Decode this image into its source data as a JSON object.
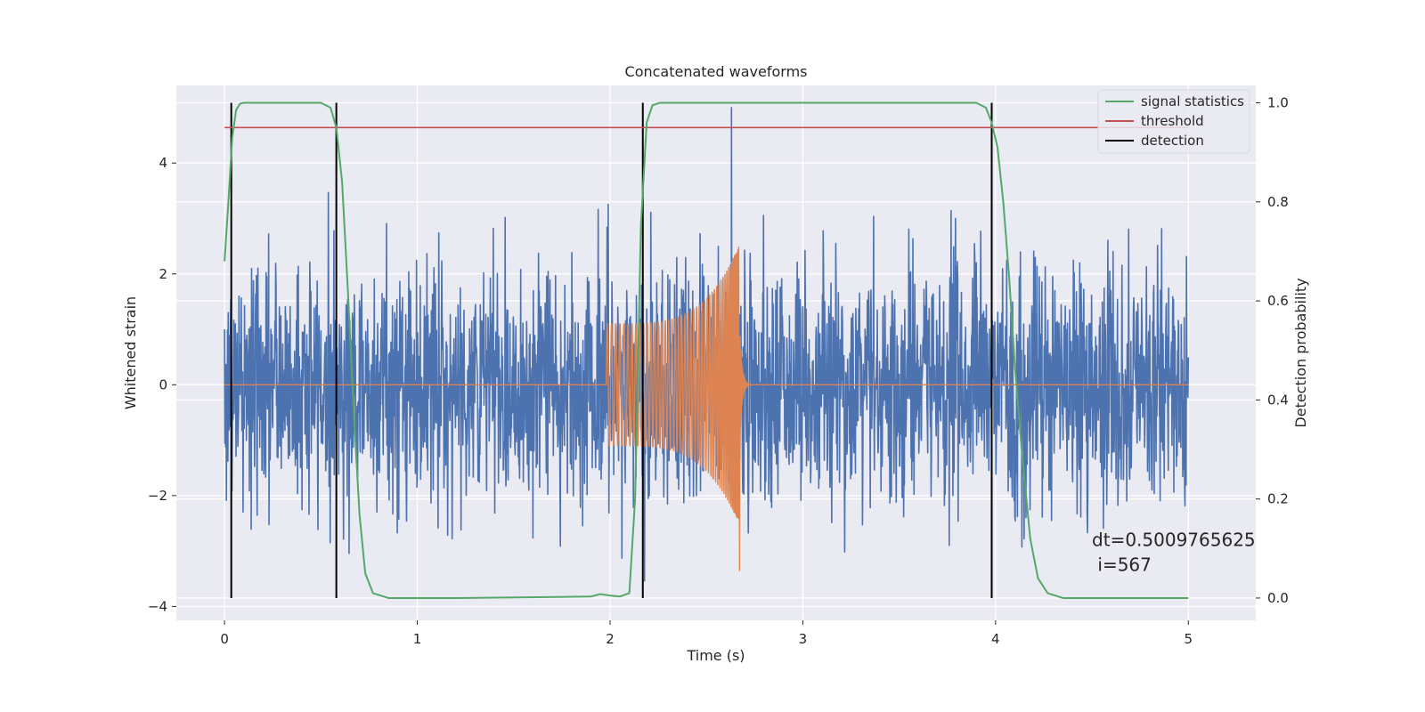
{
  "chart_data": {
    "type": "line",
    "title": "Concatenated waveforms",
    "xlabel": "Time (s)",
    "ylabel": "Whitened strain",
    "y2label": "Detection probability",
    "xlim": [
      -0.25,
      5.35
    ],
    "ylim": [
      -4.25,
      5.4
    ],
    "y2lim": [
      -0.045,
      1.035
    ],
    "x_ticks": [
      0,
      1,
      2,
      3,
      4,
      5
    ],
    "x_tick_labels": [
      "0",
      "1",
      "2",
      "3",
      "4",
      "5"
    ],
    "y_ticks": [
      -4,
      -2,
      0,
      2,
      4
    ],
    "y_tick_labels": [
      "−4",
      "−2",
      "0",
      "2",
      "4"
    ],
    "y2_ticks": [
      0.0,
      0.2,
      0.4,
      0.6,
      0.8,
      1.0
    ],
    "y2_tick_labels": [
      "0.0",
      "0.2",
      "0.4",
      "0.6",
      "0.8",
      "1.0"
    ],
    "grid": true,
    "legend_position": "top-right",
    "colors": {
      "noise": "#4c72b0",
      "waveform": "#dd8452",
      "signal_statistics": "#55a868",
      "threshold": "#c44e52",
      "detection": "#000000",
      "background": "#eaeaf2"
    },
    "series": [
      {
        "name": "",
        "axis": "left",
        "kind": "noise",
        "x_range": [
          0,
          5
        ],
        "amplitude_approx": 2.8,
        "peak": {
          "x": 2.63,
          "y": 5.0
        }
      },
      {
        "name": "",
        "axis": "left",
        "kind": "chirp",
        "x_range": [
          0,
          5
        ],
        "chirp_start": 1.98,
        "merger": 2.67,
        "ringdown_end": 2.72,
        "initial_amplitude": 1.1,
        "peak_amplitude": 2.55,
        "min_value": -3.35
      },
      {
        "name": "signal statistics",
        "axis": "right",
        "x": [
          0.0,
          0.02,
          0.04,
          0.06,
          0.08,
          0.1,
          0.15,
          0.3,
          0.5,
          0.55,
          0.58,
          0.61,
          0.64,
          0.67,
          0.7,
          0.73,
          0.77,
          0.85,
          1.2,
          1.9,
          1.95,
          2.0,
          2.05,
          2.1,
          2.13,
          2.16,
          2.19,
          2.22,
          2.26,
          2.35,
          3.0,
          3.9,
          3.95,
          3.98,
          4.01,
          4.04,
          4.07,
          4.1,
          4.14,
          4.18,
          4.22,
          4.27,
          4.35,
          5.0
        ],
        "y": [
          0.68,
          0.8,
          0.93,
          0.985,
          0.998,
          1.0,
          1.0,
          1.0,
          1.0,
          0.99,
          0.95,
          0.84,
          0.62,
          0.38,
          0.17,
          0.05,
          0.01,
          0.0,
          0.0,
          0.003,
          0.008,
          0.005,
          0.003,
          0.01,
          0.2,
          0.75,
          0.96,
          0.995,
          1.0,
          1.0,
          1.0,
          1.0,
          0.99,
          0.96,
          0.91,
          0.8,
          0.65,
          0.47,
          0.28,
          0.12,
          0.04,
          0.01,
          0.0,
          0.0
        ]
      },
      {
        "name": "threshold",
        "axis": "right",
        "x": [
          0,
          5
        ],
        "y": [
          0.95,
          0.95
        ]
      }
    ],
    "detections": {
      "name": "detection",
      "x": [
        0.035,
        0.58,
        2.17,
        3.98
      ],
      "y_range": [
        0,
        1
      ]
    },
    "legend": [
      {
        "label": "signal statistics",
        "color_key": "signal_statistics"
      },
      {
        "label": "threshold",
        "color_key": "threshold"
      },
      {
        "label": "detection",
        "color_key": "detection"
      }
    ],
    "annotation": {
      "line1": "dt=0.5009765625",
      "line2": " i=567",
      "x": 4.5,
      "y_axis2": 0.105
    }
  }
}
